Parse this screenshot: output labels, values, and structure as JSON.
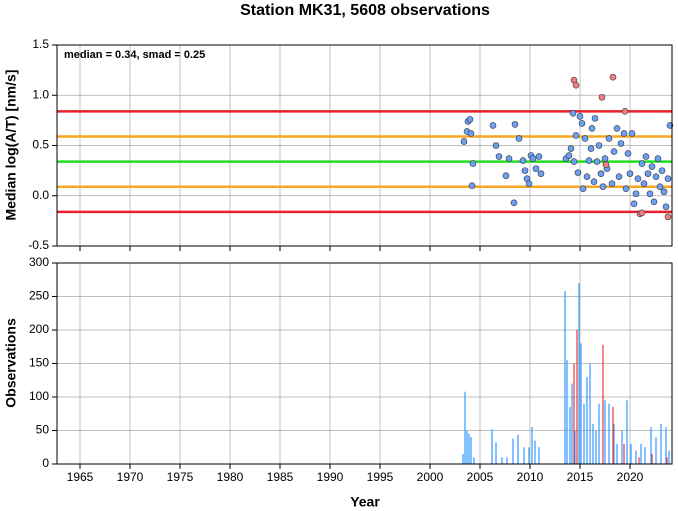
{
  "chart_data": [
    {
      "type": "scatter",
      "title": "Station MK31, 5608 observations",
      "ylabel": "Median log(A/T) [nm/s]",
      "annotation": "median = 0.34, smad = 0.25",
      "xlim": [
        1962.7,
        2024.2
      ],
      "xticks": [
        1965,
        1970,
        1975,
        1980,
        1985,
        1990,
        1995,
        2000,
        2005,
        2010,
        2015,
        2020
      ],
      "ylim": [
        -0.5,
        1.5
      ],
      "yticks": [
        -0.5,
        {
          "value": 0,
          "label": "0.0"
        },
        0.5,
        {
          "value": 1,
          "label": "1.0"
        },
        1.5
      ],
      "grid": true,
      "hlines": [
        {
          "value": 0.84,
          "color": "#e8202a"
        },
        {
          "value": 0.59,
          "color": "#f5a623"
        },
        {
          "value": 0.34,
          "color": "#22dd22"
        },
        {
          "value": 0.09,
          "color": "#f5a623"
        },
        {
          "value": -0.16,
          "color": "#e8202a"
        }
      ],
      "series": [
        {
          "color": "#6aa0f0",
          "x": [
            2003.4,
            2003.7,
            2003.8,
            2004.0,
            2004.1,
            2004.2,
            2004.3,
            2006.3,
            2006.6,
            2006.9,
            2007.6,
            2007.9,
            2008.4,
            2008.5,
            2008.9,
            2009.3,
            2009.5,
            2009.7,
            2009.9,
            2010.1,
            2010.3,
            2010.6,
            2010.9,
            2011.1,
            2013.6,
            2013.9,
            2014.1,
            2014.3,
            2014.4,
            2014.6,
            2014.8,
            2015.0,
            2015.2,
            2015.3,
            2015.5,
            2015.7,
            2015.9,
            2016.1,
            2016.2,
            2016.4,
            2016.5,
            2016.7,
            2016.9,
            2017.1,
            2017.3,
            2017.5,
            2017.7,
            2017.9,
            2018.2,
            2018.4,
            2018.7,
            2018.9,
            2019.1,
            2019.4,
            2019.6,
            2019.8,
            2020.0,
            2020.2,
            2020.4,
            2020.6,
            2020.8,
            2021.2,
            2021.4,
            2021.6,
            2021.8,
            2022.0,
            2022.2,
            2022.4,
            2022.6,
            2022.8,
            2023.0,
            2023.2,
            2023.4,
            2023.6,
            2023.8,
            2024.0
          ],
          "values": [
            0.54,
            0.64,
            0.74,
            0.76,
            0.62,
            0.1,
            0.32,
            0.7,
            0.5,
            0.39,
            0.2,
            0.37,
            -0.07,
            0.71,
            0.57,
            0.35,
            0.25,
            0.17,
            0.12,
            0.4,
            0.37,
            0.27,
            0.39,
            0.22,
            0.37,
            0.4,
            0.47,
            0.82,
            0.34,
            0.6,
            0.23,
            0.79,
            0.72,
            0.07,
            0.57,
            0.19,
            0.35,
            0.47,
            0.67,
            0.14,
            0.77,
            0.34,
            0.5,
            0.22,
            0.09,
            0.37,
            0.27,
            0.57,
            0.12,
            0.44,
            0.67,
            0.19,
            0.52,
            0.62,
            0.07,
            0.42,
            0.22,
            0.62,
            -0.08,
            0.02,
            0.17,
            0.32,
            0.12,
            0.39,
            0.22,
            0.02,
            0.29,
            -0.06,
            0.19,
            0.37,
            0.09,
            0.25,
            0.04,
            -0.11,
            0.17,
            0.7
          ]
        },
        {
          "color": "#f08080",
          "x": [
            2014.4,
            2014.6,
            2017.2,
            2017.6,
            2018.3,
            2019.5,
            2021.0,
            2021.2,
            2023.8
          ],
          "values": [
            1.15,
            1.1,
            0.98,
            0.31,
            1.18,
            0.84,
            -0.18,
            -0.17,
            -0.21
          ]
        }
      ]
    },
    {
      "type": "bar",
      "xlabel": "Year",
      "ylabel": "Observations",
      "xlim": [
        1962.7,
        2024.2
      ],
      "xticks": [
        1965,
        1970,
        1975,
        1980,
        1985,
        1990,
        1995,
        2000,
        2005,
        2010,
        2015,
        2020
      ],
      "ylim": [
        0,
        300
      ],
      "yticks": [
        0,
        50,
        100,
        150,
        200,
        250,
        300
      ],
      "grid": true,
      "series": [
        {
          "color": "#3399ff",
          "x": [
            2003.3,
            2003.5,
            2003.7,
            2003.9,
            2004.1,
            2004.4,
            2006.2,
            2006.6,
            2007.2,
            2007.7,
            2008.3,
            2008.8,
            2009.4,
            2009.9,
            2010.2,
            2010.5,
            2010.9,
            2013.5,
            2013.7,
            2014.0,
            2014.2,
            2014.5,
            2014.9,
            2015.1,
            2015.4,
            2015.7,
            2016.0,
            2016.3,
            2016.6,
            2016.9,
            2017.5,
            2017.9,
            2018.4,
            2018.7,
            2019.2,
            2019.7,
            2020.1,
            2020.6,
            2021.1,
            2021.5,
            2022.1,
            2022.6,
            2023.1,
            2023.6,
            2023.9
          ],
          "values": [
            15,
            108,
            50,
            45,
            40,
            10,
            52,
            32,
            10,
            10,
            38,
            44,
            25,
            25,
            55,
            35,
            25,
            258,
            155,
            85,
            120,
            50,
            270,
            180,
            90,
            130,
            150,
            60,
            50,
            90,
            95,
            90,
            60,
            30,
            50,
            95,
            30,
            20,
            30,
            25,
            55,
            40,
            60,
            55,
            20
          ]
        },
        {
          "color": "#e8383d",
          "x": [
            2014.4,
            2014.7,
            2017.3,
            2018.3,
            2019.4,
            2020.9,
            2022.2,
            2023.7
          ],
          "values": [
            150,
            200,
            178,
            85,
            30,
            10,
            15,
            10
          ]
        }
      ]
    }
  ]
}
